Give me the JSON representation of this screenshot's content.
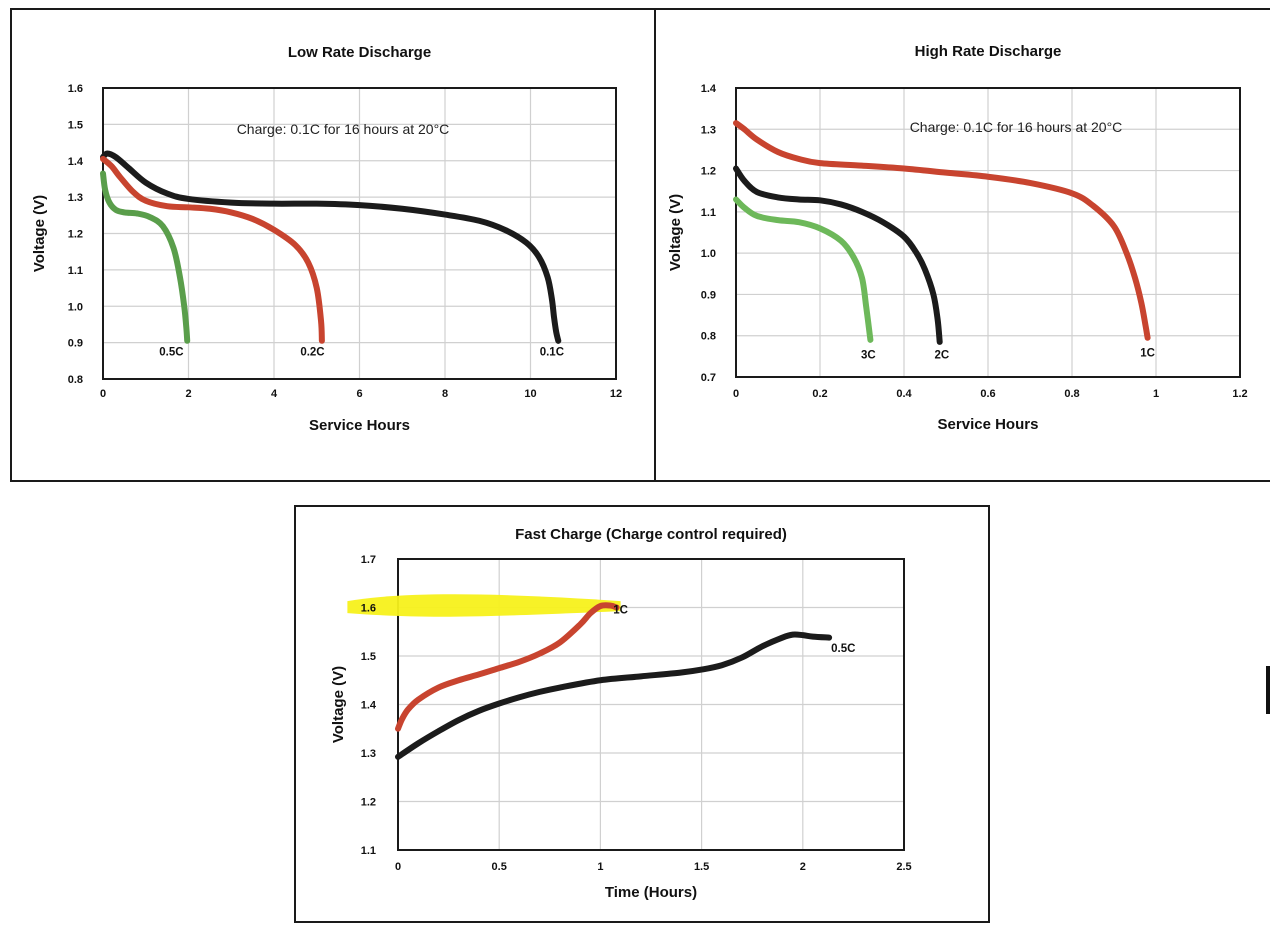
{
  "colors": {
    "black": "#1b1b1b",
    "red": "#c8442f",
    "green": "#5a9e4b",
    "light_green": "#6db85a",
    "highlight": "#f7f11b"
  },
  "chart_data": [
    {
      "type": "line",
      "title": "Low Rate Discharge",
      "xlabel": "Service Hours",
      "ylabel": "Voltage (V)",
      "xlim": [
        0,
        12
      ],
      "ylim": [
        0.8,
        1.6
      ],
      "xticks": [
        0,
        2,
        4,
        6,
        8,
        10,
        12
      ],
      "xtick_labels": [
        "0",
        "2",
        "4",
        "6",
        "8",
        "10",
        "12"
      ],
      "yticks": [
        0.8,
        0.9,
        1.0,
        1.1,
        1.2,
        1.3,
        1.4,
        1.5,
        1.6
      ],
      "ytick_labels": [
        "0.8",
        "0.9",
        "1.0",
        "1.1",
        "1.2",
        "1.3",
        "1.4",
        "1.5",
        "1.6"
      ],
      "grid": true,
      "annotation": "Charge: 0.1C for 16 hours at 20°C",
      "series": [
        {
          "name": "0.1C",
          "color": "black",
          "x": [
            0,
            0.1,
            0.3,
            0.6,
            1,
            1.5,
            2,
            3,
            4,
            5,
            6,
            7,
            8,
            8.8,
            9.4,
            9.9,
            10.2,
            10.4,
            10.5,
            10.55,
            10.6,
            10.65
          ],
          "y": [
            1.41,
            1.42,
            1.41,
            1.38,
            1.34,
            1.31,
            1.295,
            1.285,
            1.282,
            1.282,
            1.278,
            1.268,
            1.252,
            1.235,
            1.21,
            1.175,
            1.135,
            1.08,
            1.02,
            0.97,
            0.93,
            0.905
          ]
        },
        {
          "name": "0.2C",
          "color": "red",
          "x": [
            0,
            0.2,
            0.4,
            0.7,
            1,
            1.5,
            2,
            2.5,
            3,
            3.5,
            4,
            4.5,
            4.8,
            5,
            5.1,
            5.12
          ],
          "y": [
            1.405,
            1.385,
            1.355,
            1.315,
            1.29,
            1.275,
            1.272,
            1.268,
            1.258,
            1.24,
            1.21,
            1.168,
            1.12,
            1.05,
            0.96,
            0.905
          ]
        },
        {
          "name": "0.5C",
          "color": "green",
          "x": [
            0,
            0.05,
            0.15,
            0.3,
            0.5,
            0.8,
            1.1,
            1.4,
            1.65,
            1.8,
            1.9,
            1.95,
            1.97
          ],
          "y": [
            1.365,
            1.32,
            1.285,
            1.265,
            1.258,
            1.255,
            1.245,
            1.22,
            1.16,
            1.08,
            1.0,
            0.94,
            0.905
          ]
        }
      ],
      "labels": [
        {
          "text": "0.5C",
          "x": 1.6,
          "y": 0.865
        },
        {
          "text": "0.2C",
          "x": 4.9,
          "y": 0.865
        },
        {
          "text": "0.1C",
          "x": 10.5,
          "y": 0.865
        }
      ]
    },
    {
      "type": "line",
      "title": "High Rate Discharge",
      "xlabel": "Service Hours",
      "ylabel": "Voltage (V)",
      "xlim": [
        0,
        1.2
      ],
      "ylim": [
        0.7,
        1.4
      ],
      "xticks": [
        0,
        0.2,
        0.4,
        0.6,
        0.8,
        1.0,
        1.2
      ],
      "xtick_labels": [
        "0",
        "0.2",
        "0.4",
        "0.6",
        "0.8",
        "1",
        "1.2"
      ],
      "yticks": [
        0.7,
        0.8,
        0.9,
        1.0,
        1.1,
        1.2,
        1.3,
        1.4
      ],
      "ytick_labels": [
        "0.7",
        "0.8",
        "0.9",
        "1.0",
        "1.1",
        "1.2",
        "1.3",
        "1.4"
      ],
      "grid": true,
      "annotation": "Charge: 0.1C for 16 hours at 20°C",
      "series": [
        {
          "name": "1C",
          "color": "red",
          "x": [
            0,
            0.02,
            0.05,
            0.1,
            0.15,
            0.2,
            0.3,
            0.4,
            0.5,
            0.6,
            0.7,
            0.8,
            0.85,
            0.9,
            0.93,
            0.95,
            0.965,
            0.975,
            0.98
          ],
          "y": [
            1.315,
            1.3,
            1.275,
            1.245,
            1.228,
            1.218,
            1.212,
            1.205,
            1.195,
            1.185,
            1.17,
            1.145,
            1.115,
            1.065,
            1.0,
            0.94,
            0.88,
            0.825,
            0.795
          ]
        },
        {
          "name": "2C",
          "color": "black",
          "x": [
            0,
            0.02,
            0.05,
            0.1,
            0.15,
            0.2,
            0.25,
            0.3,
            0.35,
            0.4,
            0.43,
            0.45,
            0.47,
            0.48,
            0.485
          ],
          "y": [
            1.205,
            1.175,
            1.148,
            1.135,
            1.13,
            1.128,
            1.118,
            1.1,
            1.075,
            1.04,
            1.0,
            0.96,
            0.9,
            0.84,
            0.785
          ]
        },
        {
          "name": "3C",
          "color": "light_green",
          "x": [
            0,
            0.02,
            0.05,
            0.1,
            0.15,
            0.2,
            0.25,
            0.28,
            0.3,
            0.31,
            0.32
          ],
          "y": [
            1.13,
            1.11,
            1.09,
            1.08,
            1.075,
            1.06,
            1.03,
            0.99,
            0.94,
            0.87,
            0.79
          ]
        }
      ],
      "labels": [
        {
          "text": "3C",
          "x": 0.315,
          "y": 0.745
        },
        {
          "text": "2C",
          "x": 0.49,
          "y": 0.745
        },
        {
          "text": "1C",
          "x": 0.98,
          "y": 0.75
        }
      ]
    },
    {
      "type": "line",
      "title": "Fast Charge (Charge control required)",
      "xlabel": "Time (Hours)",
      "ylabel": "Voltage (V)",
      "xlim": [
        0,
        2.5
      ],
      "ylim": [
        1.1,
        1.7
      ],
      "xticks": [
        0,
        0.5,
        1.0,
        1.5,
        2.0,
        2.5
      ],
      "xtick_labels": [
        "0",
        "0.5",
        "1",
        "1.5",
        "2",
        "2.5"
      ],
      "yticks": [
        1.1,
        1.2,
        1.3,
        1.4,
        1.5,
        1.6,
        1.7
      ],
      "ytick_labels": [
        "1.1",
        "1.2",
        "1.3",
        "1.4",
        "1.5",
        "1.6",
        "1.7"
      ],
      "grid": true,
      "highlight": {
        "y": 1.605,
        "x_from": -0.25,
        "x_to": 1.1
      },
      "series": [
        {
          "name": "1C",
          "color": "red",
          "x": [
            0,
            0.02,
            0.05,
            0.1,
            0.2,
            0.3,
            0.4,
            0.5,
            0.6,
            0.7,
            0.8,
            0.9,
            0.95,
            1.0,
            1.05,
            1.08
          ],
          "y": [
            1.35,
            1.37,
            1.39,
            1.41,
            1.435,
            1.45,
            1.462,
            1.475,
            1.488,
            1.505,
            1.528,
            1.565,
            1.588,
            1.603,
            1.604,
            1.6
          ]
        },
        {
          "name": "0.5C",
          "color": "black",
          "x": [
            0,
            0.1,
            0.2,
            0.3,
            0.4,
            0.5,
            0.6,
            0.7,
            0.8,
            1.0,
            1.2,
            1.4,
            1.5,
            1.6,
            1.7,
            1.8,
            1.9,
            1.95,
            2.0,
            2.05,
            2.13
          ],
          "y": [
            1.292,
            1.32,
            1.345,
            1.368,
            1.387,
            1.402,
            1.415,
            1.426,
            1.435,
            1.45,
            1.458,
            1.466,
            1.472,
            1.481,
            1.497,
            1.52,
            1.538,
            1.544,
            1.543,
            1.54,
            1.538
          ]
        }
      ],
      "labels": [
        {
          "text": "1C",
          "x": 1.1,
          "y": 1.588
        },
        {
          "text": "0.5C",
          "x": 2.2,
          "y": 1.508
        }
      ]
    }
  ]
}
